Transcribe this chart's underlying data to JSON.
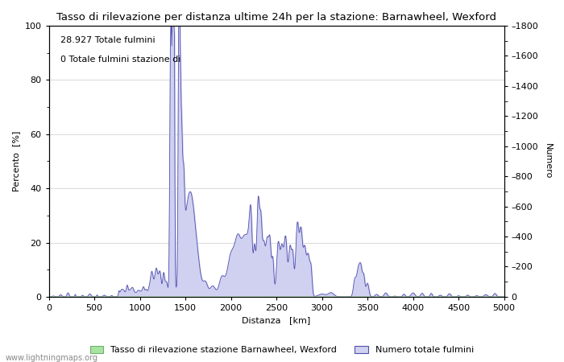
{
  "title": "Tasso di rilevazione per distanza ultime 24h per la stazione: Barnawheel, Wexford",
  "xlabel": "Distanza   [km]",
  "ylabel_left": "Percento  [%]",
  "ylabel_right": "Numero",
  "annotation_line1": "28.927 Totale fulmini",
  "annotation_line2": "0 Totale fulmini stazione di",
  "xlim": [
    0,
    5000
  ],
  "ylim_left": [
    0,
    100
  ],
  "ylim_right": [
    0,
    1800
  ],
  "xticks": [
    0,
    500,
    1000,
    1500,
    2000,
    2500,
    3000,
    3500,
    4000,
    4500,
    5000
  ],
  "yticks_left": [
    0,
    20,
    40,
    60,
    80,
    100
  ],
  "yticks_right": [
    0,
    200,
    400,
    600,
    800,
    1000,
    1200,
    1400,
    1600,
    1800
  ],
  "legend_label_green": "Tasso di rilevazione stazione Barnawheel, Wexford",
  "legend_label_blue": "Numero totale fulmini",
  "fill_green_color": "#a8e4a0",
  "fill_blue_color": "#d0d0f0",
  "line_blue_color": "#5050b0",
  "watermark": "www.lightningmaps.org",
  "scale_factor": 18.0
}
